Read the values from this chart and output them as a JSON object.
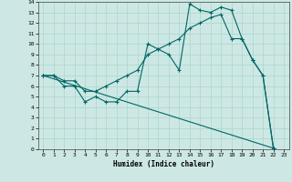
{
  "title": "",
  "xlabel": "Humidex (Indice chaleur)",
  "bg_color": "#cde8e4",
  "grid_color": "#b0d8d0",
  "line_color": "#006666",
  "xlim": [
    -0.5,
    23.5
  ],
  "ylim": [
    0,
    14
  ],
  "xticks": [
    0,
    1,
    2,
    3,
    4,
    5,
    6,
    7,
    8,
    9,
    10,
    11,
    12,
    13,
    14,
    15,
    16,
    17,
    18,
    19,
    20,
    21,
    22,
    23
  ],
  "yticks": [
    0,
    1,
    2,
    3,
    4,
    5,
    6,
    7,
    8,
    9,
    10,
    11,
    12,
    13,
    14
  ],
  "curve1_x": [
    0,
    1,
    2,
    3,
    4,
    5,
    6,
    7,
    8,
    9,
    10,
    11,
    12,
    13,
    14,
    15,
    16,
    17,
    18,
    19,
    20,
    21,
    22
  ],
  "curve1_y": [
    7,
    7,
    6,
    6,
    4.5,
    5.0,
    4.5,
    4.5,
    5.5,
    5.5,
    10.0,
    9.5,
    9.0,
    7.5,
    13.8,
    13.2,
    13.0,
    13.5,
    13.2,
    10.5,
    8.5,
    7.0,
    0.1
  ],
  "curve2_x": [
    0,
    22
  ],
  "curve2_y": [
    7,
    0.1
  ],
  "curve3_x": [
    0,
    1,
    2,
    3,
    4,
    5,
    6,
    7,
    8,
    9,
    10,
    11,
    12,
    13,
    14,
    15,
    16,
    17,
    18,
    19,
    20,
    21,
    22
  ],
  "curve3_y": [
    7,
    7.0,
    6.5,
    6.5,
    5.5,
    5.5,
    6.0,
    6.5,
    7.0,
    7.5,
    9.0,
    9.5,
    10.0,
    10.5,
    11.5,
    12.0,
    12.5,
    12.8,
    10.5,
    10.5,
    8.5,
    7.0,
    0.1
  ]
}
